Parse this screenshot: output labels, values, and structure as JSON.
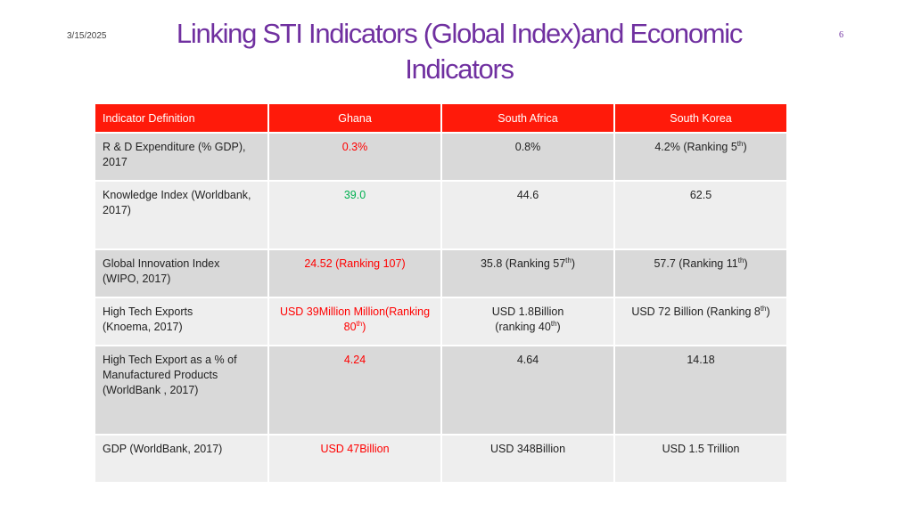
{
  "slide": {
    "date": "3/15/2025",
    "page_number": "6",
    "title_line1": "Linking STI Indicators (Global Index)and Economic",
    "title_line2": "Indicators"
  },
  "colors": {
    "title": "#7030a0",
    "header_bg": "#ff1a0a",
    "ghana_red": "#ff0000",
    "ghana_green": "#00b050",
    "row_odd": "#d9d9d9",
    "row_even": "#eeeeee"
  },
  "table": {
    "headers": [
      "Indicator Definition",
      "Ghana",
      "South Africa",
      "South Korea"
    ],
    "rows": [
      {
        "indicator": [
          "R & D Expenditure (% GDP),",
          "2017"
        ],
        "ghana": "0.3%",
        "south_africa": {
          "main": "0.8%",
          "line2": ""
        },
        "south_korea": {
          "main": "4.2% (Ranking 5",
          "sup": "th",
          "after": ")"
        }
      },
      {
        "indicator": [
          "Knowledge Index (Worldbank,",
          "2017)"
        ],
        "ghana": "39.0",
        "south_africa": {
          "main": "44.6"
        },
        "south_korea": {
          "main": "62.5"
        }
      },
      {
        "indicator": [
          "Global Innovation Index",
          "(WIPO, 2017)"
        ],
        "ghana": "24.52 (Ranking 107)",
        "south_africa": {
          "main": "35.8 (Ranking 57",
          "sup": "th",
          "after": ")"
        },
        "south_korea": {
          "main": "57.7 (Ranking 11",
          "sup": "th",
          "after": ")"
        }
      },
      {
        "indicator": [
          "High Tech Exports",
          "(Knoema, 2017)"
        ],
        "ghana": {
          "line1": "USD 39Million Million(Ranking",
          "line2": "80",
          "sup": "th",
          "after": ")"
        },
        "south_africa": {
          "line1": "USD 1.8Billion",
          "line2": "(ranking 40",
          "sup": "th",
          "after": ")"
        },
        "south_korea": {
          "main": "USD 72 Billion (Ranking 8",
          "sup": "th",
          "after": ")"
        }
      },
      {
        "indicator": [
          "High Tech Export as a % of",
          "Manufactured Products",
          "(WorldBank , 2017)"
        ],
        "ghana": "4.24",
        "south_africa": {
          "main": "4.64"
        },
        "south_korea": {
          "main": "14.18"
        }
      },
      {
        "indicator": [
          "GDP (WorldBank, 2017)"
        ],
        "ghana": "USD 47Billion",
        "south_africa": {
          "main": "USD 348Billion"
        },
        "south_korea": {
          "main": "USD 1.5 Trillion"
        }
      }
    ]
  }
}
